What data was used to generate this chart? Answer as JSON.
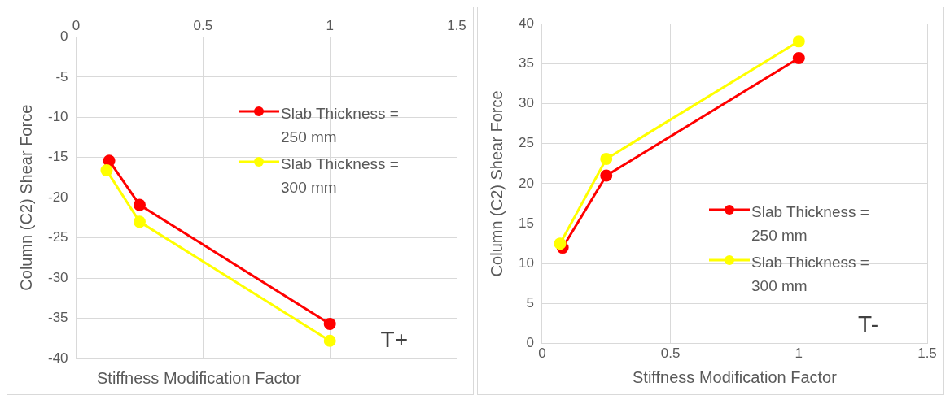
{
  "chart_data": [
    {
      "type": "line",
      "xlabel": "Stiffness Modification Factor",
      "ylabel": "Column (C2) Shear Force",
      "xlim": [
        0,
        1.5
      ],
      "xticks": [
        0,
        0.5,
        1,
        1.5
      ],
      "ylim": [
        -40,
        0
      ],
      "yticks": [
        -40,
        -35,
        -30,
        -25,
        -20,
        -15,
        -10,
        -5,
        0
      ],
      "grid": true,
      "legend": "top right",
      "marker": "circle",
      "annotations": [
        "T+"
      ],
      "series": [
        {
          "name": "Slab Thickness = 250 mm",
          "color": "#ff0000",
          "x": [
            0.13,
            0.25,
            1
          ],
          "values": [
            -15.4,
            -20.9,
            -35.7
          ]
        },
        {
          "name": "Slab Thickness = 300 mm",
          "color": "#ffff00",
          "x": [
            0.12,
            0.25,
            1
          ],
          "values": [
            -16.6,
            -23.0,
            -37.8
          ]
        }
      ]
    },
    {
      "type": "line",
      "xlabel": "Stiffness Modification Factor",
      "ylabel": "Column (C2) Shear Force",
      "xlim": [
        0,
        1.5
      ],
      "xticks": [
        0,
        0.5,
        1,
        1.5
      ],
      "ylim": [
        0,
        40
      ],
      "yticks": [
        0,
        5,
        10,
        15,
        20,
        25,
        30,
        35,
        40
      ],
      "grid": true,
      "legend": "right",
      "marker": "circle",
      "annotations": [
        "T-"
      ],
      "series": [
        {
          "name": "Slab Thickness = 250 mm",
          "color": "#ff0000",
          "x": [
            0.08,
            0.25,
            1
          ],
          "values": [
            12.0,
            21.0,
            35.7
          ]
        },
        {
          "name": "Slab Thickness = 300 mm",
          "color": "#ffff00",
          "x": [
            0.07,
            0.25,
            1
          ],
          "values": [
            12.5,
            23.1,
            37.8
          ]
        }
      ]
    }
  ]
}
